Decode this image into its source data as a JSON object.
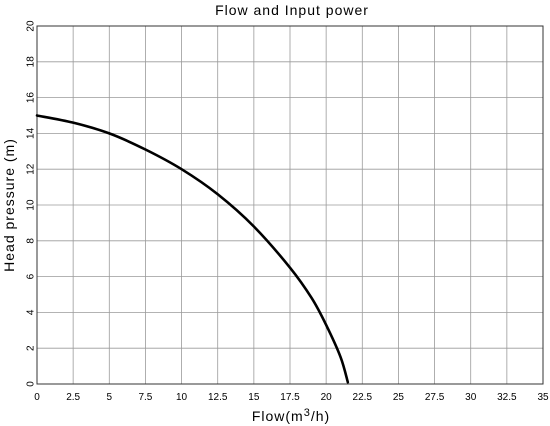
{
  "chart_data": {
    "type": "line",
    "title": "Flow and Input power",
    "xlabel_main": "Flow(m",
    "xlabel_sup": "3",
    "xlabel_end": "/h)",
    "ylabel": "Head pressure (m)",
    "xlim": [
      0,
      35
    ],
    "ylim": [
      0,
      20
    ],
    "x_ticks": [
      "0",
      "2.5",
      "5",
      "7.5",
      "10",
      "12.5",
      "15",
      "17.5",
      "20",
      "22.5",
      "25",
      "27.5",
      "30",
      "32.5",
      "35"
    ],
    "y_ticks": [
      "0",
      "2",
      "4",
      "6",
      "8",
      "10",
      "12",
      "14",
      "16",
      "18",
      "20"
    ],
    "grid": true,
    "series": [
      {
        "x": [
          0,
          2.5,
          5,
          7.5,
          10,
          12.5,
          15,
          17.5,
          19,
          20,
          21,
          21.5
        ],
        "y": [
          15,
          14.6,
          14.0,
          13.1,
          12.0,
          10.6,
          8.8,
          6.5,
          4.8,
          3.3,
          1.5,
          0.1
        ]
      }
    ]
  }
}
